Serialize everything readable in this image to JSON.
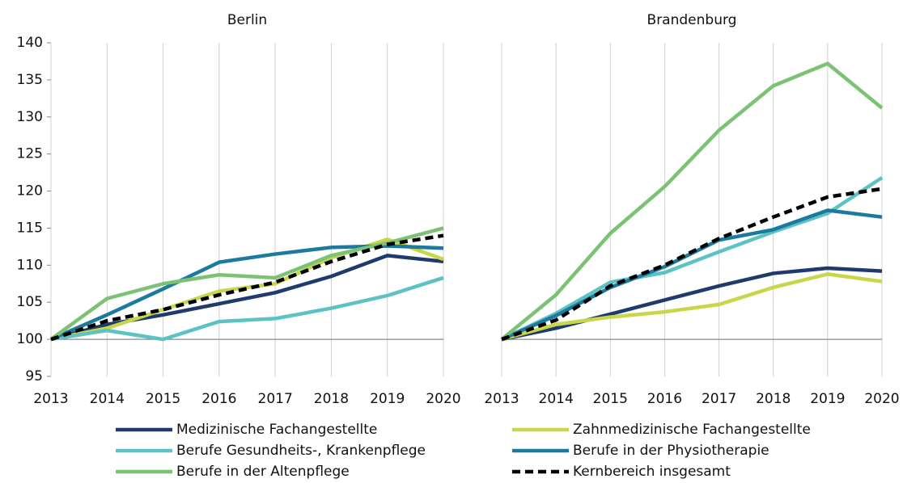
{
  "chart_data": [
    {
      "type": "line",
      "title": "Berlin",
      "categories": [
        "2013",
        "2014",
        "2015",
        "2016",
        "2017",
        "2018",
        "2019",
        "2020"
      ],
      "ylim": [
        95,
        140
      ],
      "yticks": [
        95,
        100,
        105,
        110,
        115,
        120,
        125,
        130,
        135,
        140
      ],
      "series": [
        {
          "name": "Medizinische Fachangestellte",
          "color": "#1f3b6e",
          "values": [
            100,
            102.0,
            103.3,
            104.8,
            106.3,
            108.5,
            111.3,
            110.5
          ]
        },
        {
          "name": "Zahnmedizinische Fachangestellte",
          "color": "#c9d64a",
          "values": [
            100,
            101.5,
            104.0,
            106.5,
            107.5,
            111.0,
            113.5,
            110.8
          ]
        },
        {
          "name": "Berufe Gesundheits-, Krankenpflege",
          "color": "#5cc2c4",
          "values": [
            100,
            101.2,
            100.0,
            102.4,
            102.8,
            104.2,
            105.9,
            108.3
          ]
        },
        {
          "name": "Berufe in der Physiotherapie",
          "color": "#1c7a9e",
          "values": [
            100,
            103.3,
            106.8,
            110.4,
            111.5,
            112.4,
            112.6,
            112.3
          ]
        },
        {
          "name": "Berufe in der Altenpflege",
          "color": "#7cc274",
          "values": [
            100,
            105.5,
            107.5,
            108.7,
            108.3,
            111.3,
            113.0,
            115.0
          ]
        },
        {
          "name": "Kernbereich insgesamt",
          "color": "#000000",
          "dash": true,
          "values": [
            100,
            102.5,
            104.0,
            106.0,
            107.7,
            110.5,
            112.8,
            114.0
          ]
        }
      ]
    },
    {
      "type": "line",
      "title": "Brandenburg",
      "categories": [
        "2013",
        "2014",
        "2015",
        "2016",
        "2017",
        "2018",
        "2019",
        "2020"
      ],
      "ylim": [
        95,
        140
      ],
      "series": [
        {
          "values": [
            100,
            101.5,
            103.4,
            105.3,
            107.2,
            108.9,
            109.6,
            109.2
          ]
        },
        {
          "values": [
            100,
            102.0,
            103.0,
            103.7,
            104.7,
            107.0,
            108.8,
            107.8
          ]
        },
        {
          "values": [
            100,
            103.5,
            107.7,
            109.0,
            111.8,
            114.5,
            117.0,
            121.8
          ]
        },
        {
          "values": [
            100,
            103.2,
            107.0,
            109.8,
            113.4,
            114.8,
            117.4,
            116.5
          ]
        },
        {
          "values": [
            100,
            106.0,
            114.3,
            120.6,
            128.2,
            134.2,
            137.2,
            131.2
          ]
        },
        {
          "values": [
            100,
            102.6,
            107.2,
            110.0,
            113.6,
            116.5,
            119.2,
            120.3
          ]
        }
      ]
    }
  ]
}
